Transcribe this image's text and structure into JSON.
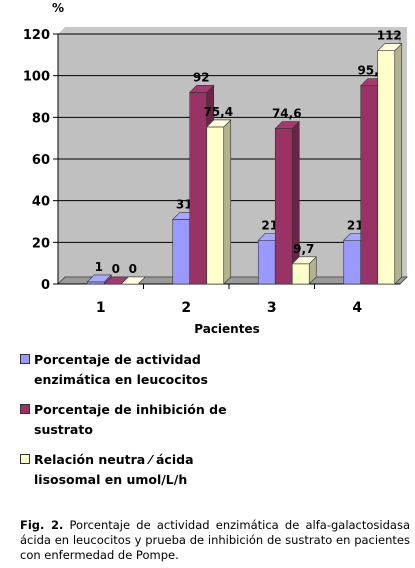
{
  "chart_data": {
    "type": "bar",
    "ylabel": "%",
    "xlabel": "Pacientes",
    "categories": [
      "1",
      "2",
      "3",
      "4"
    ],
    "ylim": [
      0,
      120
    ],
    "yticks": [
      0,
      20,
      40,
      60,
      80,
      100,
      120
    ],
    "grid": true,
    "legend_position": "bottom",
    "series": [
      {
        "name": "Porcentaje de actividad enzimática en leucocitos",
        "color": "#9999ff",
        "values": [
          1,
          31,
          21,
          21
        ],
        "labels": [
          "1",
          "31",
          "21",
          "21"
        ]
      },
      {
        "name": "Porcentaje de inhibición de sustrato",
        "color": "#993366",
        "values": [
          0,
          92,
          74.6,
          95.2
        ],
        "labels": [
          "0",
          "92",
          "74,6",
          "95,2"
        ]
      },
      {
        "name": "Relación neutra / ácida lisosomal en umol/L/h",
        "color": "#ffffcc",
        "values": [
          0,
          75.4,
          9.7,
          112
        ],
        "labels": [
          "0",
          "75,4",
          "9,7",
          "112"
        ]
      }
    ]
  },
  "legend": {
    "item1_line1": "Porcentaje de actividad",
    "item1_line2": "enzimática en  leucocitos",
    "item2_line1": "Porcentaje de inhibición de",
    "item2_line2": "sustrato",
    "item3_line1": "Relación neutra ⁄ ácida",
    "item3_line2": "lisosomal en umol/L/h"
  },
  "caption": {
    "label": "Fig. 2.",
    "text": " Porcentaje de actividad enzimática de alfa-galactosidasa ácida en leucocitos y prueba de inhibición de sustrato en pacientes con enfermedad de Pompe."
  }
}
